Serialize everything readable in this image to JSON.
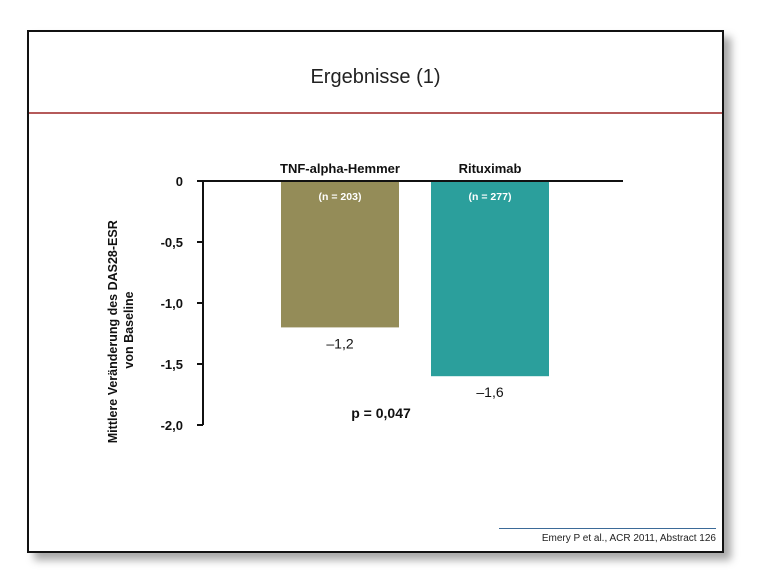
{
  "slide": {
    "title": "Ergebnisse (1)",
    "citation": "Emery P et al., ACR 2011, Abstract 126"
  },
  "chart_data": {
    "type": "bar",
    "categories": [
      "TNF-alpha-Hemmer",
      "Rituximab"
    ],
    "n_labels": [
      "(n = 203)",
      "(n = 277)"
    ],
    "values": [
      -1.2,
      -1.6
    ],
    "value_labels": [
      "–1,2",
      "–1,6"
    ],
    "colors": [
      "#948c58",
      "#2b9f9c"
    ],
    "ylabel_line1": "Mittlere Veränderung des DAS28-ESR",
    "ylabel_line2": "von Baseline",
    "ylim": [
      -2.0,
      0
    ],
    "yticks": [
      0,
      -0.5,
      -1.0,
      -1.5,
      -2.0
    ],
    "ytick_labels": [
      "0",
      "-0,5",
      "-1,0",
      "-1,5",
      "-2,0"
    ],
    "annotation": "p = 0,047",
    "grid": false
  }
}
